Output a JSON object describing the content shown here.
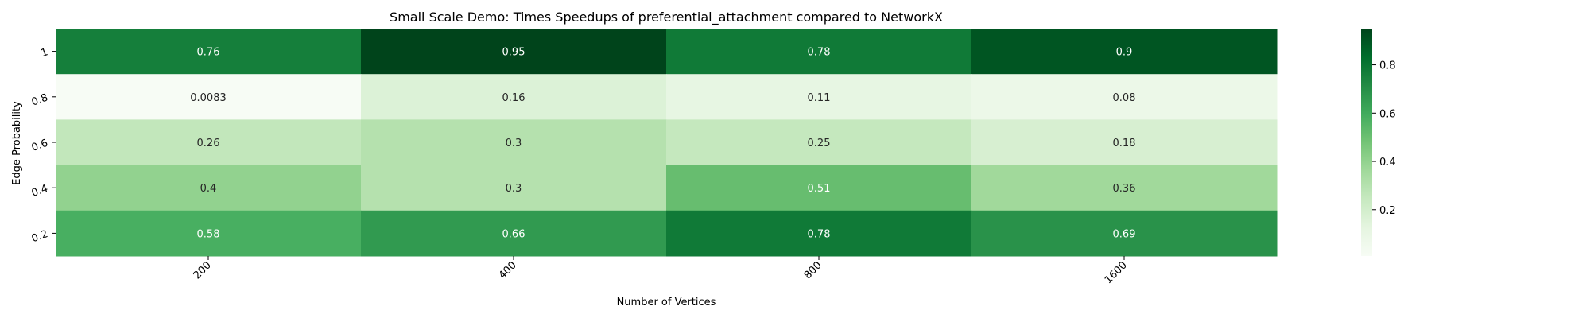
{
  "chart_data": {
    "type": "heatmap",
    "title": "Small Scale Demo: Times Speedups of preferential_attachment compared to NetworkX",
    "xlabel": "Number of Vertices",
    "ylabel": "Edge Probability",
    "x_categories": [
      "200",
      "400",
      "800",
      "1600"
    ],
    "y_categories": [
      "1",
      "0.8",
      "0.6",
      "0.4",
      "0.2"
    ],
    "values": [
      [
        0.76,
        0.95,
        0.78,
        0.9
      ],
      [
        0.0083,
        0.16,
        0.11,
        0.08
      ],
      [
        0.26,
        0.3,
        0.25,
        0.18
      ],
      [
        0.4,
        0.3,
        0.51,
        0.36
      ],
      [
        0.58,
        0.66,
        0.78,
        0.69
      ]
    ],
    "cell_labels": [
      [
        "0.76",
        "0.95",
        "0.78",
        "0.9"
      ],
      [
        "0.0083",
        "0.16",
        "0.11",
        "0.08"
      ],
      [
        "0.26",
        "0.3",
        "0.25",
        "0.18"
      ],
      [
        "0.4",
        "0.3",
        "0.51",
        "0.36"
      ],
      [
        "0.58",
        "0.66",
        "0.78",
        "0.69"
      ]
    ],
    "colormap": "Greens",
    "colorbar": {
      "vmin": 0.0083,
      "vmax": 0.95,
      "ticks": [
        "0.2",
        "0.4",
        "0.6",
        "0.8"
      ]
    }
  }
}
